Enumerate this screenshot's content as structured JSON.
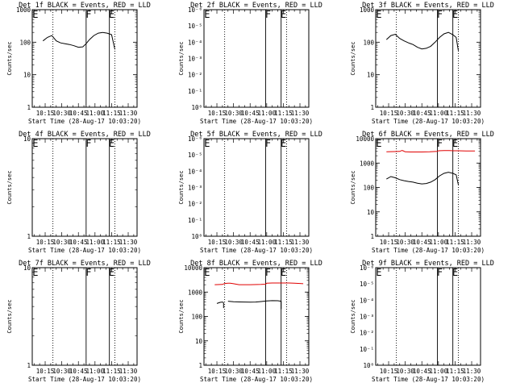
{
  "chart_data": [
    {
      "type": "line",
      "title": "Det 1f BLACK = Events, RED = LLD",
      "ylabel": "Counts/sec",
      "xlabel": "Start Time (28-Aug-17 10:03:20)",
      "x_ticks": [
        "10:15",
        "10:30",
        "10:45",
        "11:00",
        "11:15",
        "11:30"
      ],
      "yscale": "log",
      "ylim": [
        1,
        1000
      ],
      "y_tick_labels": [
        "1",
        "10",
        "100",
        "1000"
      ],
      "dotted_lines": [
        "10:22",
        "11:18"
      ],
      "solid_lines": [
        "10:52",
        "11:13"
      ],
      "flags": [
        {
          "label": "E",
          "x": "10:05"
        },
        {
          "label": "F",
          "x": "10:53"
        },
        {
          "label": "E",
          "x": "11:14"
        }
      ],
      "series": [
        {
          "color": "#000000",
          "x": [
            "10:13",
            "10:17",
            "10:21",
            "10:25",
            "10:29",
            "10:33",
            "10:37",
            "10:41",
            "10:45",
            "10:49",
            "10:52",
            "10:55",
            "10:59",
            "11:03",
            "11:07",
            "11:11",
            "11:15",
            "11:18"
          ],
          "values": [
            110,
            140,
            160,
            110,
            95,
            90,
            85,
            78,
            70,
            72,
            90,
            120,
            160,
            190,
            200,
            190,
            170,
            60
          ]
        }
      ]
    },
    {
      "type": "line",
      "title": "Det 2f BLACK = Events, RED = LLD",
      "ylabel": "Counts/sec",
      "xlabel": "Start Time (28-Aug-17 10:03:20)",
      "x_ticks": [
        "10:15",
        "10:30",
        "10:45",
        "11:00",
        "11:15",
        "11:30"
      ],
      "yscale": "log",
      "ylim": [
        1e-06,
        1e-08
      ],
      "y_tick_labels": [
        "10⁰",
        "10⁻¹",
        "10⁻²",
        "10⁻³",
        "10⁻⁴",
        "10⁻⁵",
        "10⁻⁶"
      ],
      "dotted_lines": [
        "10:22",
        "11:18"
      ],
      "solid_lines": [
        "10:59",
        "11:13"
      ],
      "flags": [
        {
          "label": "E",
          "x": "10:05"
        },
        {
          "label": "F",
          "x": "11:00"
        },
        {
          "label": "E",
          "x": "11:14"
        }
      ],
      "series": []
    },
    {
      "type": "line",
      "title": "Det 3f BLACK = Events, RED = LLD",
      "ylabel": "Counts/sec",
      "xlabel": "Start Time (28-Aug-17 10:03:20)",
      "x_ticks": [
        "10:15",
        "10:30",
        "10:45",
        "11:00",
        "11:15",
        "11:30"
      ],
      "yscale": "log",
      "ylim": [
        1,
        1000
      ],
      "y_tick_labels": [
        "1",
        "10",
        "100",
        "1000"
      ],
      "dotted_lines": [
        "10:22",
        "11:18"
      ],
      "solid_lines": [
        "10:59",
        "11:13"
      ],
      "flags": [
        {
          "label": "E",
          "x": "10:05"
        },
        {
          "label": "F",
          "x": "11:00"
        },
        {
          "label": "E",
          "x": "11:14"
        }
      ],
      "series": [
        {
          "color": "#000000",
          "x": [
            "10:13",
            "10:17",
            "10:21",
            "10:25",
            "10:29",
            "10:33",
            "10:37",
            "10:41",
            "10:45",
            "10:49",
            "10:53",
            "10:57",
            "11:01",
            "11:05",
            "11:09",
            "11:13",
            "11:16",
            "11:18"
          ],
          "values": [
            120,
            160,
            175,
            130,
            110,
            95,
            85,
            70,
            62,
            65,
            75,
            100,
            140,
            180,
            200,
            170,
            140,
            55
          ]
        }
      ]
    },
    {
      "type": "line",
      "title": "Det 4f BLACK = Events, RED = LLD",
      "ylabel": "Counts/sec",
      "xlabel": "Start Time (28-Aug-17 10:03:20)",
      "x_ticks": [
        "10:15",
        "10:30",
        "10:45",
        "11:00",
        "11:15",
        "11:30"
      ],
      "yscale": "log",
      "ylim": [
        1,
        10
      ],
      "y_tick_labels": [
        "1",
        "10"
      ],
      "dotted_lines": [
        "10:22",
        "11:18"
      ],
      "solid_lines": [
        "10:52",
        "11:13"
      ],
      "flags": [
        {
          "label": "E",
          "x": "10:05"
        },
        {
          "label": "F",
          "x": "10:53"
        },
        {
          "label": "E",
          "x": "11:14"
        }
      ],
      "series": []
    },
    {
      "type": "line",
      "title": "Det 5f BLACK = Events, RED = LLD",
      "ylabel": "Counts/sec",
      "xlabel": "Start Time (28-Aug-17 10:03:20)",
      "x_ticks": [
        "10:15",
        "10:30",
        "10:45",
        "11:00",
        "11:15",
        "11:30"
      ],
      "yscale": "log",
      "ylim": [
        1e-06,
        1e-08
      ],
      "y_tick_labels": [
        "10⁰",
        "10⁻¹",
        "10⁻²",
        "10⁻³",
        "10⁻⁴",
        "10⁻⁵",
        "10⁻⁶"
      ],
      "dotted_lines": [
        "10:22",
        "11:18"
      ],
      "solid_lines": [
        "10:59",
        "11:13"
      ],
      "flags": [
        {
          "label": "E",
          "x": "10:05"
        },
        {
          "label": "F",
          "x": "11:00"
        },
        {
          "label": "E",
          "x": "11:14"
        }
      ],
      "series": []
    },
    {
      "type": "line",
      "title": "Det 6f BLACK = Events, RED = LLD",
      "ylabel": "Counts/sec",
      "xlabel": "Start Time (28-Aug-17 10:03:20)",
      "x_ticks": [
        "10:15",
        "10:30",
        "10:45",
        "11:00",
        "11:15",
        "11:30"
      ],
      "yscale": "log",
      "ylim": [
        1,
        10000
      ],
      "y_tick_labels": [
        "1",
        "10",
        "100",
        "1000",
        "10000"
      ],
      "dotted_lines": [
        "10:22",
        "11:18"
      ],
      "solid_lines": [
        "10:59",
        "11:13"
      ],
      "flags": [
        {
          "label": "E",
          "x": "10:05"
        },
        {
          "label": "F",
          "x": "11:00"
        },
        {
          "label": "E",
          "x": "11:14"
        }
      ],
      "series": [
        {
          "color": "#000000",
          "x": [
            "10:13",
            "10:17",
            "10:21",
            "10:25",
            "10:29",
            "10:33",
            "10:37",
            "10:41",
            "10:45",
            "10:49",
            "10:53",
            "10:57",
            "11:01",
            "11:05",
            "11:09",
            "11:13",
            "11:16",
            "11:18"
          ],
          "values": [
            220,
            280,
            250,
            210,
            190,
            175,
            165,
            150,
            140,
            145,
            165,
            210,
            300,
            380,
            420,
            380,
            330,
            130
          ]
        },
        {
          "color": "#e00000",
          "x": [
            "10:13",
            "10:20",
            "10:25",
            "10:27",
            "10:28",
            "10:30",
            "10:35",
            "10:45",
            "10:52",
            "10:59",
            "11:00",
            "11:05",
            "11:10",
            "11:13",
            "11:18",
            "11:25",
            "11:30",
            "11:33"
          ],
          "values": [
            2900,
            2950,
            3000,
            3300,
            3200,
            2900,
            2850,
            2850,
            2900,
            3000,
            3200,
            3250,
            3250,
            3200,
            3200,
            3150,
            3150,
            3150
          ]
        }
      ]
    },
    {
      "type": "line",
      "title": "Det 7f BLACK = Events, RED = LLD",
      "ylabel": "Counts/sec",
      "xlabel": "Start Time (28-Aug-17 10:03:20)",
      "x_ticks": [
        "10:15",
        "10:30",
        "10:45",
        "11:00",
        "11:15",
        "11:30"
      ],
      "yscale": "log",
      "ylim": [
        1,
        10
      ],
      "y_tick_labels": [
        "1",
        "10"
      ],
      "dotted_lines": [
        "10:22",
        "11:18"
      ],
      "solid_lines": [
        "10:52",
        "11:13"
      ],
      "flags": [
        {
          "label": "E",
          "x": "10:05"
        },
        {
          "label": "F",
          "x": "10:53"
        },
        {
          "label": "E",
          "x": "11:14"
        }
      ],
      "series": []
    },
    {
      "type": "line",
      "title": "Det 8f BLACK = Events, RED = LLD",
      "ylabel": "Counts/sec",
      "xlabel": "Start Time (28-Aug-17 10:03:20)",
      "x_ticks": [
        "10:15",
        "10:30",
        "10:45",
        "11:00",
        "11:15",
        "11:30"
      ],
      "yscale": "log",
      "ylim": [
        1,
        10000
      ],
      "y_tick_labels": [
        "1",
        "10",
        "100",
        "1000",
        "10000"
      ],
      "dotted_lines": [
        "10:22",
        "11:18"
      ],
      "solid_lines": [
        "10:59",
        "11:13"
      ],
      "flags": [
        {
          "label": "E",
          "x": "10:05"
        },
        {
          "label": "F",
          "x": "11:00"
        },
        {
          "label": "E",
          "x": "11:14"
        }
      ],
      "series": [
        {
          "color": "#000000",
          "segments": [
            {
              "x": [
                "10:15",
                "10:18",
                "10:20",
                "10:21"
              ],
              "values": [
                340,
                380,
                390,
                370
              ]
            },
            {
              "x": [
                "10:21",
                "10:21"
              ],
              "values": [
                370,
                220
              ]
            },
            {
              "x": [
                "10:25",
                "10:30",
                "10:35",
                "10:40",
                "10:45",
                "10:50",
                "10:55",
                "11:00",
                "11:05",
                "11:10",
                "11:13"
              ],
              "values": [
                420,
                400,
                395,
                390,
                385,
                390,
                410,
                430,
                445,
                440,
                420
              ]
            },
            {
              "x": [
                "11:13",
                "11:13"
              ],
              "values": [
                420,
                200
              ]
            }
          ]
        },
        {
          "color": "#e00000",
          "x": [
            "10:13",
            "10:20",
            "10:22",
            "10:25",
            "10:27",
            "10:30",
            "10:35",
            "10:45",
            "10:55",
            "10:59",
            "11:00",
            "11:05",
            "11:13",
            "11:20",
            "11:25",
            "11:30",
            "11:33"
          ],
          "values": [
            2000,
            2050,
            2250,
            2300,
            2300,
            2200,
            2000,
            2000,
            2050,
            2100,
            2300,
            2350,
            2350,
            2350,
            2300,
            2250,
            2200
          ]
        }
      ]
    },
    {
      "type": "line",
      "title": "Det 9f BLACK = Events, RED = LLD",
      "ylabel": "Counts/sec",
      "xlabel": "Start Time (28-Aug-17 10:03:20)",
      "x_ticks": [
        "10:15",
        "10:30",
        "10:45",
        "11:00",
        "11:15",
        "11:30"
      ],
      "yscale": "log",
      "ylim": [
        1e-06,
        1e-08
      ],
      "y_tick_labels": [
        "10⁰",
        "10⁻¹",
        "10⁻²",
        "10⁻³",
        "10⁻⁴",
        "10⁻⁵",
        "10⁻⁶"
      ],
      "dotted_lines": [
        "10:22",
        "11:18"
      ],
      "solid_lines": [
        "10:59",
        "11:13"
      ],
      "flags": [
        {
          "label": "E",
          "x": "10:05"
        },
        {
          "label": "F",
          "x": "11:00"
        },
        {
          "label": "E",
          "x": "11:14"
        }
      ],
      "series": []
    }
  ]
}
